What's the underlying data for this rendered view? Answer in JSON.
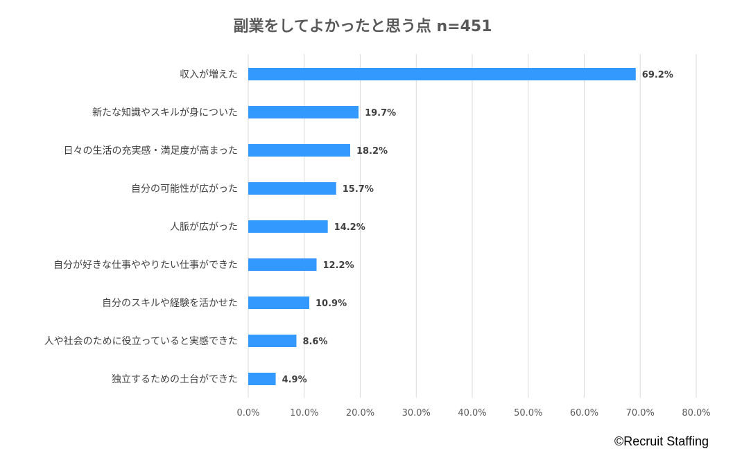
{
  "chart_data": {
    "type": "bar",
    "orientation": "horizontal",
    "title": "副業をしてよかったと思う点 n=451",
    "categories": [
      "収入が増えた",
      "新たな知識やスキルが身についた",
      "日々の生活の充実感・満足度が高まった",
      "自分の可能性が広がった",
      "人脈が広がった",
      "自分が好きな仕事ややりたい仕事ができた",
      "自分のスキルや経験を活かせた",
      "人や社会のために役立っていると実感できた",
      "独立するための土台ができた"
    ],
    "values": [
      69.2,
      19.7,
      18.2,
      15.7,
      14.2,
      12.2,
      10.9,
      8.6,
      4.9
    ],
    "value_labels": [
      "69.2%",
      "19.7%",
      "18.2%",
      "15.7%",
      "14.2%",
      "12.2%",
      "10.9%",
      "8.6%",
      "4.9%"
    ],
    "xlim": [
      0,
      80
    ],
    "xticks": [
      "0.0%",
      "10.0%",
      "20.0%",
      "30.0%",
      "40.0%",
      "50.0%",
      "60.0%",
      "70.0%",
      "80.0%"
    ],
    "xlabel": "",
    "ylabel": "",
    "grid": true,
    "bar_color": "#3399ff"
  },
  "credit": "©Recruit Staffing"
}
